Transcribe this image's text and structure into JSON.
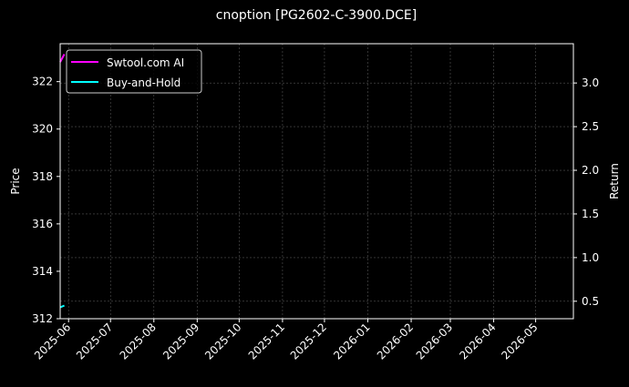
{
  "chart_data": {
    "type": "line",
    "title": "cnoption [PG2602-C-3900.DCE]",
    "ylabel": "Price",
    "y2label": "Return",
    "ylim": [
      312,
      323.6
    ],
    "y2lim": [
      0.3,
      3.45
    ],
    "xlim": [
      "2025-05-26",
      "2026-05-28"
    ],
    "yticks": [
      "312",
      "314",
      "316",
      "318",
      "320",
      "322"
    ],
    "y2ticks": [
      "0.5",
      "1.0",
      "1.5",
      "2.0",
      "2.5",
      "3.0"
    ],
    "xticks": [
      "2025-06",
      "2025-07",
      "2025-08",
      "2025-09",
      "2025-10",
      "2025-11",
      "2025-12",
      "2026-01",
      "2026-02",
      "2026-03",
      "2026-04",
      "2026-05"
    ],
    "grid": true,
    "legend_position": "top-left",
    "background": "#000000",
    "series": [
      {
        "name": "Swtool.com AI",
        "color": "#ff00ff",
        "axis": "right",
        "x": [
          "2025-05-26",
          "2025-05-29"
        ],
        "values": [
          3.24,
          3.33
        ]
      },
      {
        "name": "Buy-and-Hold",
        "color": "#00ffff",
        "axis": "right",
        "x": [
          "2025-05-26",
          "2025-05-29"
        ],
        "values": [
          0.43,
          0.45
        ]
      }
    ]
  }
}
